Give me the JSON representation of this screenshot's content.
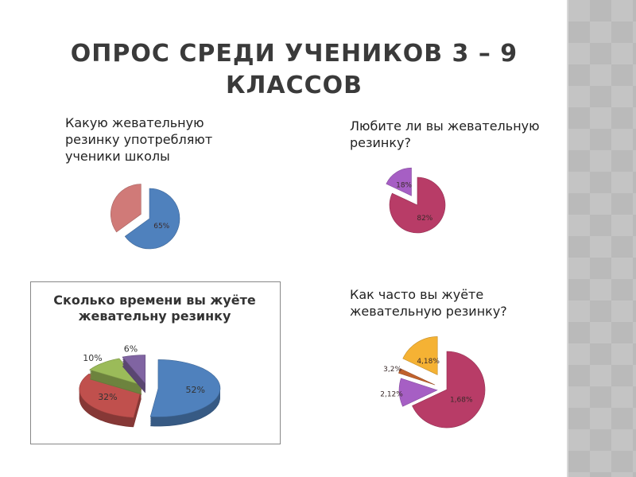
{
  "slide": {
    "title": "ОПРОС СРЕДИ УЧЕНИКОВ 3 – 9 КЛАССОВ"
  },
  "chart_data": [
    {
      "type": "pie",
      "title": "Какую жевательную резинку употребляют ученики школы",
      "values": [
        65,
        35
      ],
      "labels": [
        "65%",
        ""
      ],
      "colors": [
        "#4f81bd",
        "#d07a78"
      ]
    },
    {
      "type": "pie",
      "title": "Любите ли вы жевательную резинку?",
      "values": [
        82,
        18
      ],
      "labels": [
        "82%",
        "18%"
      ],
      "colors": [
        "#b83c67",
        "#a65fc4"
      ]
    },
    {
      "type": "pie",
      "title": "Сколько времени вы жуёте жевательну резинку",
      "values": [
        52,
        32,
        10,
        6
      ],
      "labels": [
        "52%",
        "32%",
        "10%",
        "6%"
      ],
      "colors": [
        "#4f81bd",
        "#c0504d",
        "#9bbb59",
        "#8064a2"
      ],
      "style": "3d"
    },
    {
      "type": "pie",
      "title": "Как часто вы жуёте жевательную резинку?",
      "values": [
        68,
        12,
        2,
        18
      ],
      "labels": [
        "1,68%",
        "2,12%",
        "3,2%",
        "4,18%"
      ],
      "colors": [
        "#b83c67",
        "#a65fc4",
        "#c0622d",
        "#f5b234"
      ]
    }
  ]
}
